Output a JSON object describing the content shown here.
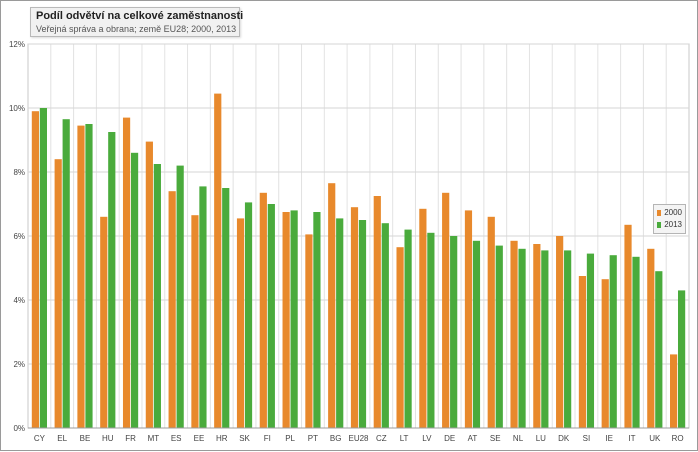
{
  "chart_data": {
    "type": "bar",
    "title": "Podíl odvětví na celkové zaměstnanosti",
    "subtitle": "Veřejná správa a obrana; země EU28; 2000, 2013",
    "categories": [
      "CY",
      "EL",
      "BE",
      "HU",
      "FR",
      "MT",
      "ES",
      "EE",
      "HR",
      "SK",
      "FI",
      "PL",
      "PT",
      "BG",
      "EU28",
      "CZ",
      "LT",
      "LV",
      "DE",
      "AT",
      "SE",
      "NL",
      "LU",
      "DK",
      "SI",
      "IE",
      "IT",
      "UK",
      "RO"
    ],
    "series": [
      {
        "name": "2000",
        "color": "#e8892c",
        "values": [
          9.9,
          8.4,
          9.45,
          6.6,
          9.7,
          8.95,
          7.4,
          6.65,
          10.45,
          6.55,
          7.35,
          6.75,
          6.05,
          7.65,
          6.9,
          7.25,
          5.65,
          6.85,
          7.35,
          6.8,
          6.6,
          5.85,
          5.75,
          6.0,
          4.75,
          4.65,
          6.35,
          5.6,
          2.3
        ]
      },
      {
        "name": "2013",
        "color": "#4aab3c",
        "values": [
          10.0,
          9.65,
          9.5,
          9.25,
          8.6,
          8.25,
          8.2,
          7.55,
          7.5,
          7.05,
          7.0,
          6.8,
          6.75,
          6.55,
          6.5,
          6.4,
          6.2,
          6.1,
          6.0,
          5.85,
          5.7,
          5.6,
          5.55,
          5.55,
          5.45,
          5.4,
          5.35,
          4.9,
          4.3
        ]
      }
    ],
    "ylim": [
      0,
      12
    ],
    "yticks": [
      "0%",
      "2%",
      "4%",
      "6%",
      "8%",
      "10%",
      "12%"
    ],
    "grid": true,
    "legend_position": "right"
  }
}
